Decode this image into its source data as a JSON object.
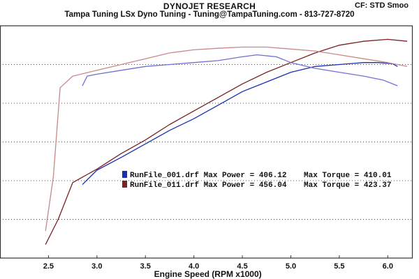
{
  "header": {
    "title": "DYNOJET RESEARCH",
    "subtitle": "Tampa Tuning LSx Dyno Tuning - Tuning@TampaTuning.com - 813-727-8720",
    "correction": "CF: STD  Smoo"
  },
  "chart_data": {
    "type": "line",
    "title": "DYNOJET RESEARCH",
    "xlabel": "Engine Speed (RPM x1000)",
    "ylabel": "",
    "xlim": [
      2.0,
      6.25
    ],
    "ylim": [
      0,
      6
    ],
    "x_ticks": [
      "2.5",
      "3.0",
      "3.5",
      "4.0",
      "4.5",
      "5.0",
      "5.5",
      "6.0"
    ],
    "grid": "horizontal-dotted",
    "legend": "center",
    "legend_entries": [
      {
        "file": "RunFile_001.drf",
        "power_label": "Max Power",
        "power": "406.12",
        "torque_label": "Max Torque",
        "torque": "410.01",
        "color": "#1a2fb0"
      },
      {
        "file": "RunFile_011.drf",
        "power_label": "Max Power",
        "power": "456.04",
        "torque_label": "Max Torque",
        "torque": "423.37",
        "color": "#7a1f22"
      }
    ],
    "series": [
      {
        "id": "run001-power",
        "color": "#1a2fb0",
        "x": [
          2.85,
          3.0,
          3.25,
          3.5,
          3.75,
          4.0,
          4.25,
          4.5,
          4.75,
          5.0,
          5.25,
          5.5,
          5.75,
          5.9,
          6.05,
          6.1
        ],
        "y": [
          1.9,
          2.27,
          2.6,
          2.95,
          3.3,
          3.6,
          3.95,
          4.3,
          4.55,
          4.8,
          4.95,
          5.0,
          5.05,
          5.05,
          5.02,
          4.95
        ]
      },
      {
        "id": "run011-power",
        "color": "#7a1f22",
        "x": [
          2.47,
          2.6,
          2.75,
          3.0,
          3.25,
          3.5,
          3.75,
          4.0,
          4.25,
          4.5,
          4.75,
          5.0,
          5.25,
          5.5,
          5.75,
          6.0,
          6.2
        ],
        "y": [
          0.35,
          1.0,
          1.95,
          2.3,
          2.7,
          3.05,
          3.45,
          3.8,
          4.15,
          4.5,
          4.8,
          5.05,
          5.3,
          5.5,
          5.6,
          5.65,
          5.6
        ]
      },
      {
        "id": "run001-torque",
        "color": "#6f6fd6",
        "x": [
          2.85,
          2.9,
          3.0,
          3.25,
          3.5,
          3.75,
          4.0,
          4.25,
          4.5,
          4.65,
          4.85,
          5.0,
          5.25,
          5.5,
          5.75,
          5.95,
          6.1
        ],
        "y": [
          4.45,
          4.7,
          4.75,
          4.85,
          4.95,
          5.0,
          5.05,
          5.1,
          5.2,
          5.25,
          5.2,
          5.05,
          4.9,
          4.8,
          4.7,
          4.6,
          4.45
        ]
      },
      {
        "id": "run011-torque",
        "color": "#c9888a",
        "x": [
          2.47,
          2.55,
          2.62,
          2.75,
          3.0,
          3.25,
          3.5,
          3.75,
          4.0,
          4.25,
          4.5,
          4.75,
          5.0,
          5.25,
          5.5,
          5.75,
          6.0,
          6.2
        ],
        "y": [
          0.7,
          2.1,
          4.4,
          4.7,
          4.85,
          5.0,
          5.15,
          5.3,
          5.38,
          5.42,
          5.45,
          5.45,
          5.4,
          5.35,
          5.25,
          5.15,
          5.05,
          4.95
        ]
      }
    ]
  }
}
